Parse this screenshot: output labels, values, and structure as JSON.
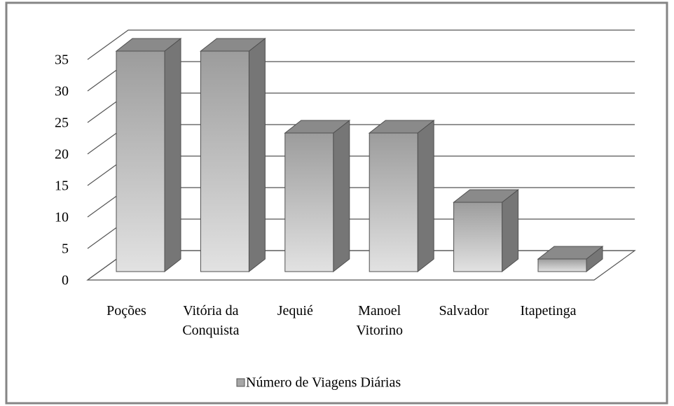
{
  "chart_data": {
    "type": "bar3d",
    "categories": [
      "Poções",
      "Vitória da Conquista",
      "Jequié",
      "Manoel Vitorino",
      "Salvador",
      "Itapetinga"
    ],
    "series": [
      {
        "name": "Número de Viagens Diárias",
        "color": "#a6a6a6",
        "values": [
          35,
          35,
          22,
          22,
          11,
          2
        ]
      }
    ],
    "ylim": [
      0,
      35
    ],
    "yticks": [
      0,
      5,
      10,
      15,
      20,
      25,
      30,
      35
    ],
    "grid": true,
    "legend": "bottom"
  }
}
